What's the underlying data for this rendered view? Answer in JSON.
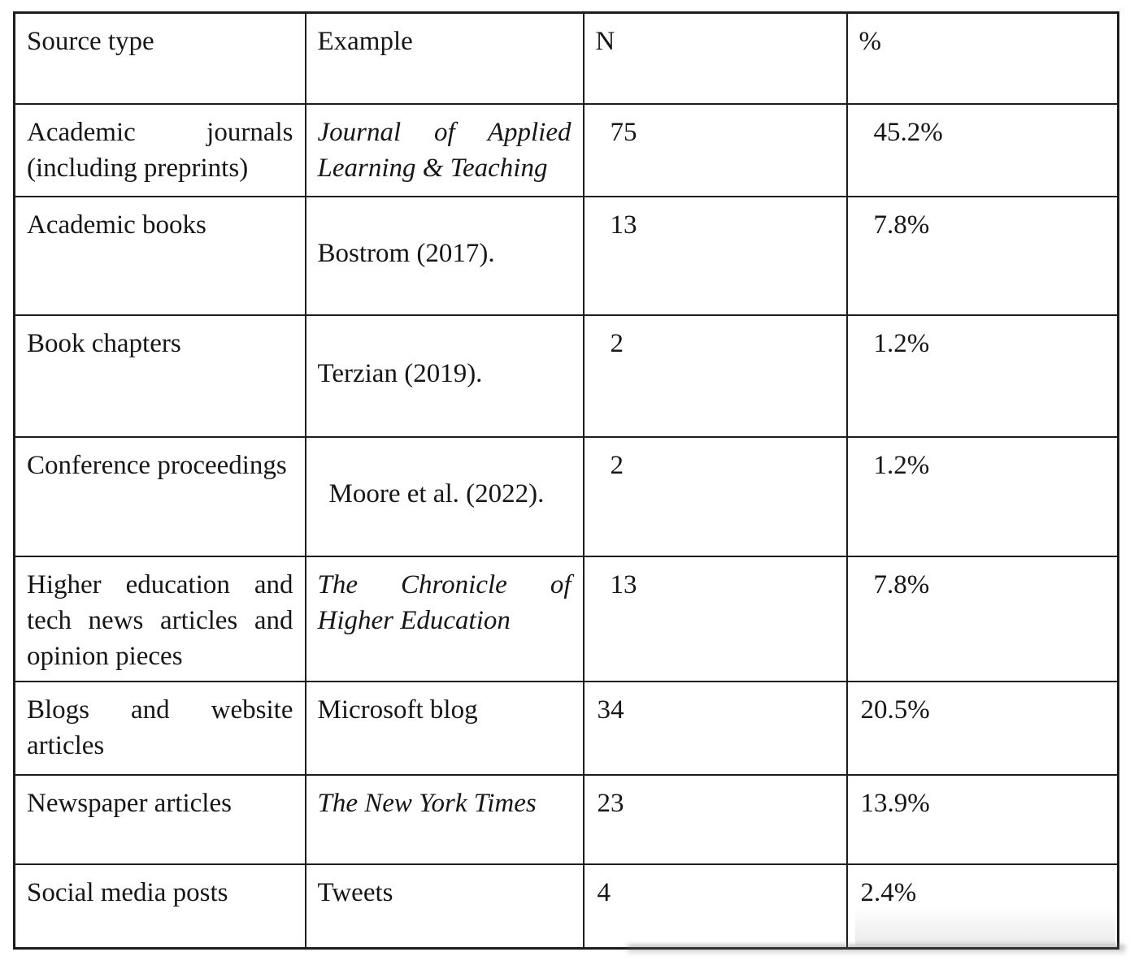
{
  "table": {
    "columns": [
      {
        "key": "source",
        "label": "Source type"
      },
      {
        "key": "example",
        "label": "Example"
      },
      {
        "key": "n",
        "label": "N"
      },
      {
        "key": "pct",
        "label": "%"
      }
    ],
    "rows": [
      {
        "source": "Academic journals (including preprints)",
        "example": "Journal of Applied Learning & Teaching",
        "example_italic": true,
        "n": "75",
        "pct": "45.2%"
      },
      {
        "source": "Academic books",
        "example": "Bostrom (2017).",
        "example_italic": false,
        "n": "13",
        "pct": "7.8%"
      },
      {
        "source": "Book chapters",
        "example": "Terzian (2019).",
        "example_italic": false,
        "n": "2",
        "pct": "1.2%"
      },
      {
        "source": "Conference proceedings",
        "example": "Moore et al. (2022).",
        "example_italic": false,
        "n": "2",
        "pct": "1.2%"
      },
      {
        "source": "Higher education and tech news articles and opinion pieces",
        "example": "The Chronicle of Higher Education",
        "example_italic": true,
        "n": "13",
        "pct": "7.8%"
      },
      {
        "source": "Blogs and website articles",
        "example": "Microsoft blog",
        "example_italic": false,
        "n": "34",
        "pct": "20.5%"
      },
      {
        "source": "Newspaper articles",
        "example": "The New York Times",
        "example_italic": true,
        "n": "23",
        "pct": "13.9%"
      },
      {
        "source": "Social media posts",
        "example": "Tweets",
        "example_italic": false,
        "n": "4",
        "pct": "2.4%"
      }
    ]
  }
}
